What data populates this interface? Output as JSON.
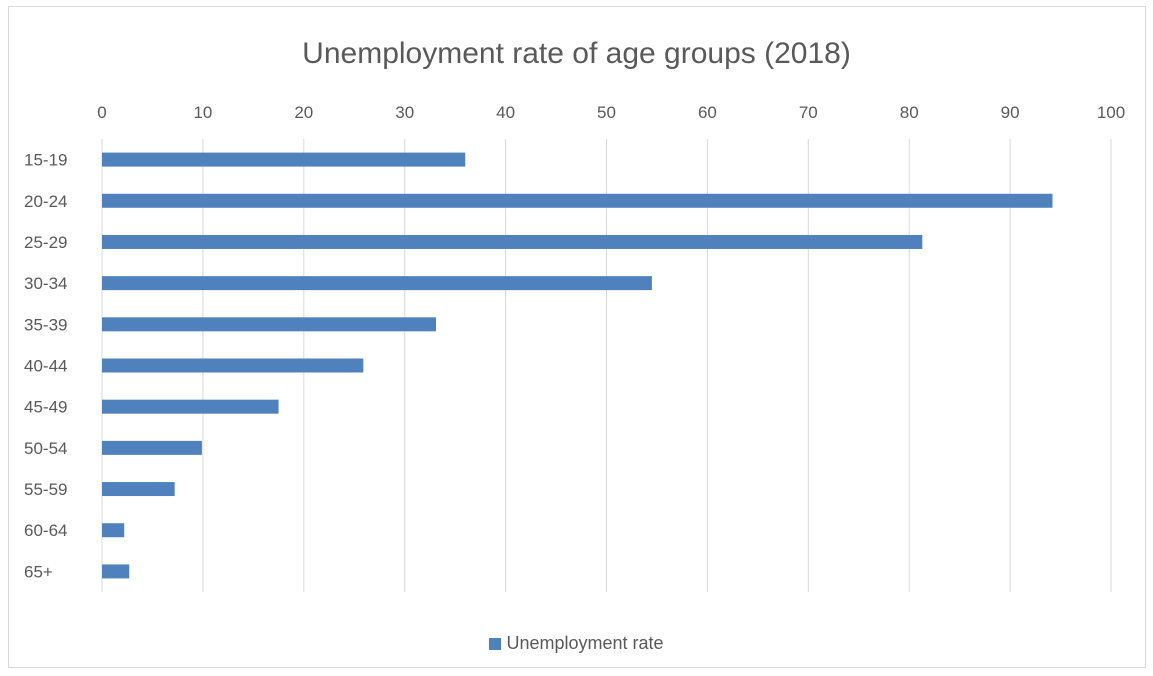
{
  "chart_data": {
    "type": "bar",
    "orientation": "horizontal",
    "title": "Unemployment rate of age groups (2018)",
    "xlabel": "",
    "ylabel": "",
    "xlim": [
      0,
      100
    ],
    "x_ticks": [
      0,
      10,
      20,
      30,
      40,
      50,
      60,
      70,
      80,
      90,
      100
    ],
    "x_axis_position": "top",
    "grid": true,
    "legend_position": "bottom",
    "categories": [
      "15-19",
      "20-24",
      "25-29",
      "30-34",
      "35-39",
      "40-44",
      "45-49",
      "50-54",
      "55-59",
      "60-64",
      "65+"
    ],
    "series": [
      {
        "name": "Unemployment rate",
        "color": "#4f81bd",
        "values": [
          36.0,
          94.2,
          81.3,
          54.5,
          33.1,
          25.9,
          17.5,
          9.9,
          7.2,
          2.2,
          2.7
        ]
      }
    ]
  }
}
